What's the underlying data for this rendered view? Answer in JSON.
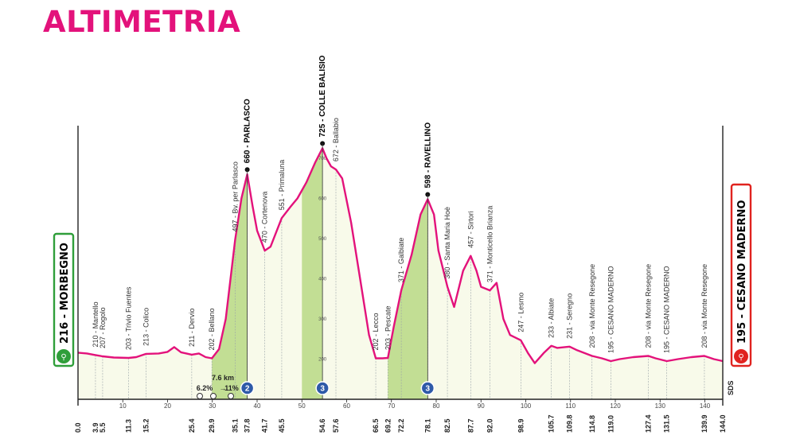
{
  "title": "ALTIMETRIA",
  "chart_data": {
    "type": "area",
    "xlabel": "",
    "ylabel": "",
    "xlim": [
      0,
      144
    ],
    "ylim": [
      100,
      900
    ],
    "start": {
      "elev": "216",
      "name": "MORBEGNO"
    },
    "finish": {
      "elev": "195",
      "name": "CESANO MADERNO"
    },
    "x_ticks": [
      10,
      20,
      30,
      40,
      50,
      60,
      70,
      80,
      90,
      100,
      110,
      120,
      130,
      140
    ],
    "profile": [
      [
        0,
        216
      ],
      [
        2,
        214
      ],
      [
        3.9,
        210
      ],
      [
        5.5,
        207
      ],
      [
        8,
        204
      ],
      [
        11.3,
        203
      ],
      [
        13,
        205
      ],
      [
        15.2,
        213
      ],
      [
        18,
        214
      ],
      [
        20,
        218
      ],
      [
        21.5,
        230
      ],
      [
        23,
        217
      ],
      [
        25.4,
        211
      ],
      [
        27,
        214
      ],
      [
        28.5,
        205
      ],
      [
        29.9,
        202
      ],
      [
        31.5,
        225
      ],
      [
        33,
        300
      ],
      [
        35.1,
        497
      ],
      [
        36.5,
        600
      ],
      [
        37.8,
        660
      ],
      [
        39,
        580
      ],
      [
        40,
        520
      ],
      [
        41.7,
        470
      ],
      [
        43,
        480
      ],
      [
        45.5,
        551
      ],
      [
        47.5,
        580
      ],
      [
        49,
        600
      ],
      [
        51,
        640
      ],
      [
        53,
        690
      ],
      [
        54.6,
        725
      ],
      [
        55.5,
        700
      ],
      [
        56.5,
        680
      ],
      [
        57.6,
        672
      ],
      [
        59,
        650
      ],
      [
        61,
        540
      ],
      [
        63,
        400
      ],
      [
        65,
        260
      ],
      [
        66.5,
        202
      ],
      [
        68,
        202
      ],
      [
        69.2,
        203
      ],
      [
        70.5,
        280
      ],
      [
        72.2,
        371
      ],
      [
        74.5,
        460
      ],
      [
        76.5,
        560
      ],
      [
        78.1,
        598
      ],
      [
        79.5,
        560
      ],
      [
        80.5,
        470
      ],
      [
        82.5,
        380
      ],
      [
        84,
        330
      ],
      [
        86,
        420
      ],
      [
        87.7,
        457
      ],
      [
        89,
        420
      ],
      [
        90,
        380
      ],
      [
        92,
        371
      ],
      [
        93.5,
        390
      ],
      [
        95,
        300
      ],
      [
        96.5,
        260
      ],
      [
        98.9,
        247
      ],
      [
        100.5,
        215
      ],
      [
        102,
        190
      ],
      [
        104,
        215
      ],
      [
        105.7,
        233
      ],
      [
        107,
        228
      ],
      [
        109.8,
        231
      ],
      [
        111.5,
        222
      ],
      [
        114.8,
        208
      ],
      [
        117,
        202
      ],
      [
        119,
        195
      ],
      [
        121,
        200
      ],
      [
        124,
        205
      ],
      [
        127.4,
        208
      ],
      [
        129,
        202
      ],
      [
        131.5,
        195
      ],
      [
        134,
        200
      ],
      [
        137,
        205
      ],
      [
        139.9,
        208
      ],
      [
        142,
        200
      ],
      [
        144,
        195
      ]
    ],
    "climbs": [
      {
        "x0": 29.9,
        "x1": 37.8,
        "cat": "2"
      },
      {
        "x0": 50,
        "x1": 54.6,
        "cat": "3"
      },
      {
        "x0": 69.2,
        "x1": 78.1,
        "cat": "3"
      }
    ],
    "gpm": [
      {
        "x": 37.8,
        "label": "660 - PARLASCO"
      },
      {
        "x": 54.6,
        "label": "725 - COLLE BALISIO"
      },
      {
        "x": 78.1,
        "label": "598 - RAVELLINO"
      }
    ],
    "points": [
      {
        "km": "0.0",
        "x": 0,
        "label": "",
        "bold": true
      },
      {
        "km": "3.9",
        "x": 3.9,
        "label": "210 - Mantello"
      },
      {
        "km": "5.5",
        "x": 5.5,
        "label": "207 - Rogolo"
      },
      {
        "km": "11.3",
        "x": 11.3,
        "label": "203 - Trivio Fuentes"
      },
      {
        "km": "15.2",
        "x": 15.2,
        "label": "213 - Colico"
      },
      {
        "km": "25.4",
        "x": 25.4,
        "label": "211 - Dervio"
      },
      {
        "km": "29.9",
        "x": 29.9,
        "label": "202 - Bellano"
      },
      {
        "km": "35.1",
        "x": 35.1,
        "label": "497 - Bv. per Parlasco"
      },
      {
        "km": "37.8",
        "x": 37.8,
        "label": "",
        "bold": true
      },
      {
        "km": "41.7",
        "x": 41.7,
        "label": "470 - Cortenova"
      },
      {
        "km": "45.5",
        "x": 45.5,
        "label": "551 - Primaluna"
      },
      {
        "km": "54.6",
        "x": 54.6,
        "label": "",
        "bold": true
      },
      {
        "km": "57.6",
        "x": 57.6,
        "label": "672 - Ballabio"
      },
      {
        "km": "66.5",
        "x": 66.5,
        "label": "202 - Lecco"
      },
      {
        "km": "69.2",
        "x": 69.2,
        "label": "203 - Pescate"
      },
      {
        "km": "72.2",
        "x": 72.2,
        "label": "371 - Galbiate"
      },
      {
        "km": "78.1",
        "x": 78.1,
        "label": "",
        "bold": true
      },
      {
        "km": "82.5",
        "x": 82.5,
        "label": "380 - Santa Maria Hoè"
      },
      {
        "km": "87.7",
        "x": 87.7,
        "label": "457 - Sirtori"
      },
      {
        "km": "92.0",
        "x": 92.0,
        "label": "371 - Monticello Brianza"
      },
      {
        "km": "98.9",
        "x": 98.9,
        "label": "247 - Lesmo"
      },
      {
        "km": "105.7",
        "x": 105.7,
        "label": "233 - Albiate"
      },
      {
        "km": "109.8",
        "x": 109.8,
        "label": "231 - Seregno"
      },
      {
        "km": "114.8",
        "x": 114.8,
        "label": "208 - via Monte Resegone"
      },
      {
        "km": "119.0",
        "x": 119.0,
        "label": "195 - CESANO MADERNO"
      },
      {
        "km": "127.4",
        "x": 127.4,
        "label": "208 - via Monte Resegone"
      },
      {
        "km": "131.5",
        "x": 131.5,
        "label": "195 - CESANO MADERNO"
      },
      {
        "km": "139.9",
        "x": 139.9,
        "label": "208 - via Monte Resegone"
      },
      {
        "km": "144.0",
        "x": 144,
        "label": "",
        "bold": true
      }
    ],
    "y_ticks": [
      200,
      300,
      400,
      500,
      600,
      700
    ],
    "climb_info": {
      "length": "7.6 km",
      "avg": "6.2%",
      "max": "11%"
    },
    "brand": "SDS",
    "colors": {
      "profile": "#e3127b",
      "fill": "#f8faea",
      "climb": "#b9d885",
      "start": "#2f9e3a",
      "finish": "#e0231f",
      "cat": "#2e5aa8"
    }
  }
}
